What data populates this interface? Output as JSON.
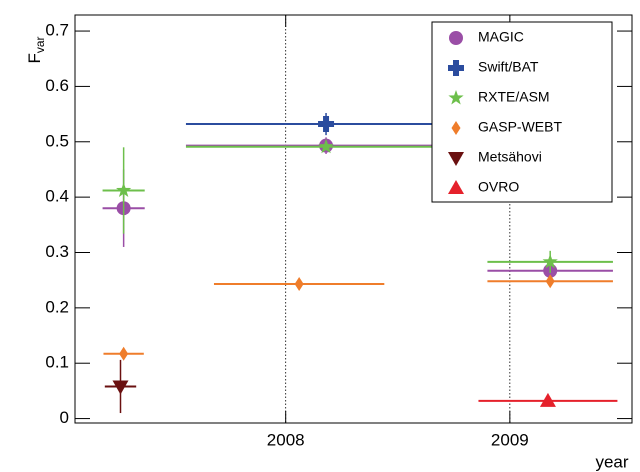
{
  "chart_data": {
    "type": "scatter",
    "y_label": "F",
    "y_label_sub": "var",
    "x_label": "year",
    "xlim": [
      2007.06,
      2009.545
    ],
    "ylim": [
      -0.008,
      0.729
    ],
    "xticks": [
      2008,
      2009
    ],
    "yticks": [
      0,
      0.1,
      0.2,
      0.3,
      0.4,
      0.5,
      0.6,
      0.7
    ],
    "xgrid": true,
    "legend": "upper right",
    "series": [
      {
        "name": "MAGIC",
        "color": "#9a4ea6",
        "marker": "circle",
        "x": [
          2007.277,
          2008.18,
          2009.18
        ],
        "values": [
          0.38,
          0.493,
          0.267
        ],
        "xerr": [
          0.094,
          0.625,
          0.28
        ],
        "yerr": [
          0.07,
          0.015,
          0.015
        ]
      },
      {
        "name": "Swift/BAT",
        "color": "#2b4c9e",
        "marker": "cross",
        "x": [
          2008.18
        ],
        "values": [
          0.532
        ],
        "xerr": [
          0.625
        ],
        "yerr": [
          0.02
        ]
      },
      {
        "name": "RXTE/ASM",
        "color": "#6dbf4b",
        "marker": "star",
        "x": [
          2007.277,
          2008.18,
          2009.18
        ],
        "values": [
          0.412,
          0.491,
          0.283
        ],
        "xerr": [
          0.094,
          0.625,
          0.28
        ],
        "yerr": [
          0.078,
          0.005,
          0.02
        ]
      },
      {
        "name": "GASP-WEBT",
        "color": "#ef7d2b",
        "marker": "diamond",
        "x": [
          2007.277,
          2008.06,
          2009.18
        ],
        "values": [
          0.117,
          0.243,
          0.248
        ],
        "xerr": [
          0.09,
          0.38,
          0.28
        ],
        "yerr": [
          0.005,
          0.006,
          0.01
        ]
      },
      {
        "name": "Metsähovi",
        "color": "#6a1010",
        "marker": "triangle-down",
        "x": [
          2007.263
        ],
        "values": [
          0.058
        ],
        "xerr": [
          0.07
        ],
        "yerr": [
          0.048
        ]
      },
      {
        "name": "OVRO",
        "color": "#e5212b",
        "marker": "triangle",
        "x": [
          2009.17
        ],
        "values": [
          0.032
        ],
        "xerr": [
          0.31
        ],
        "yerr": [
          0.004
        ]
      }
    ]
  }
}
